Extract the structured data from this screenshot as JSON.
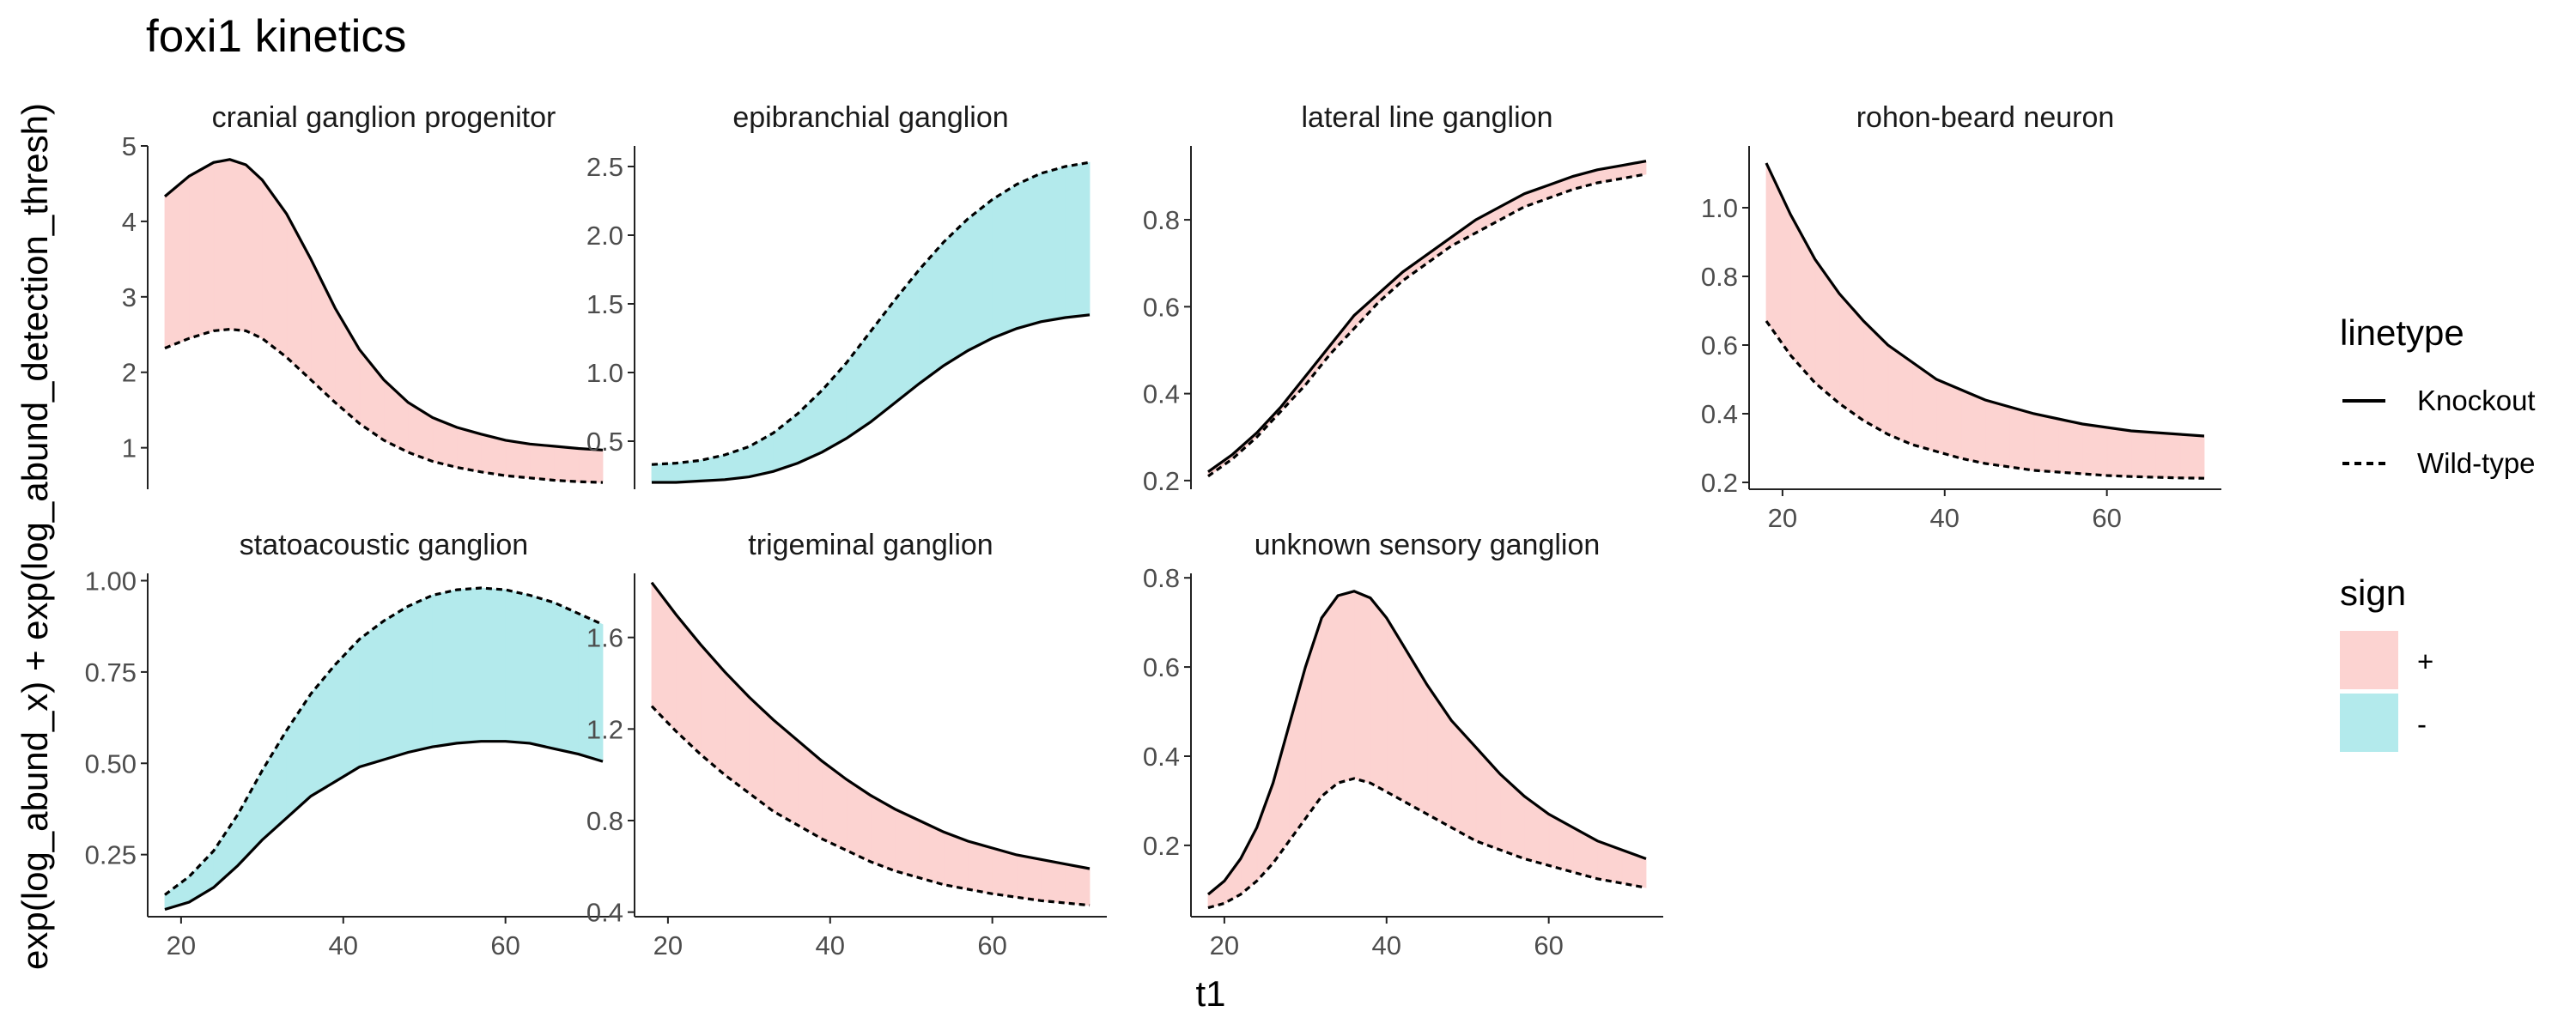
{
  "title": "foxi1 kinetics",
  "xlabel": "t1",
  "ylabel": "exp(log_abund_x) + exp(log_abund_detection_thresh)",
  "legend": {
    "linetype_title": "linetype",
    "linetype_items": [
      {
        "label": "Knockout",
        "style": "solid"
      },
      {
        "label": "Wild-type",
        "style": "dashed"
      }
    ],
    "sign_title": "sign",
    "sign_items": [
      {
        "label": "+",
        "color": "#fcd3d1"
      },
      {
        "label": "-",
        "color": "#b3eaec"
      }
    ]
  },
  "colors": {
    "positive": "#fcd3d1",
    "negative": "#b3eaec",
    "line": "#000000"
  },
  "chart_data": {
    "type": "area",
    "description_free": true,
    "x_range": [
      18,
      72
    ],
    "x_ticks": [
      20,
      40,
      60
    ],
    "panels": [
      {
        "title": "cranial ganglion progenitor",
        "ylim": [
          0.45,
          5.0
        ],
        "yticks": [
          1,
          2,
          3,
          4,
          5
        ],
        "ytick_labels": [
          "1",
          "2",
          "3",
          "4",
          "5"
        ],
        "x": [
          18,
          21,
          24,
          26,
          28,
          30,
          33,
          36,
          39,
          42,
          45,
          48,
          51,
          54,
          57,
          60,
          63,
          66,
          69,
          72
        ],
        "knockout": [
          4.33,
          4.6,
          4.78,
          4.82,
          4.75,
          4.55,
          4.1,
          3.5,
          2.85,
          2.3,
          1.9,
          1.6,
          1.4,
          1.27,
          1.18,
          1.1,
          1.05,
          1.02,
          0.99,
          0.97
        ],
        "wildtype": [
          2.32,
          2.45,
          2.55,
          2.57,
          2.55,
          2.45,
          2.2,
          1.9,
          1.6,
          1.32,
          1.1,
          0.94,
          0.82,
          0.74,
          0.68,
          0.63,
          0.6,
          0.57,
          0.55,
          0.54
        ]
      },
      {
        "title": "epibranchial ganglion",
        "ylim": [
          0.15,
          2.65
        ],
        "yticks": [
          0.5,
          1.0,
          1.5,
          2.0,
          2.5
        ],
        "ytick_labels": [
          "0.5",
          "1.0",
          "1.5",
          "2.0",
          "2.5"
        ],
        "x": [
          18,
          21,
          24,
          27,
          30,
          33,
          36,
          39,
          42,
          45,
          48,
          51,
          54,
          57,
          60,
          63,
          66,
          69,
          72
        ],
        "knockout": [
          0.2,
          0.2,
          0.21,
          0.22,
          0.24,
          0.28,
          0.34,
          0.42,
          0.52,
          0.64,
          0.78,
          0.92,
          1.05,
          1.16,
          1.25,
          1.32,
          1.37,
          1.4,
          1.42
        ],
        "wildtype": [
          0.33,
          0.34,
          0.36,
          0.4,
          0.46,
          0.56,
          0.7,
          0.87,
          1.07,
          1.3,
          1.53,
          1.75,
          1.95,
          2.12,
          2.26,
          2.37,
          2.45,
          2.5,
          2.53
        ]
      },
      {
        "title": "lateral line ganglion",
        "ylim": [
          0.18,
          0.97
        ],
        "yticks": [
          0.2,
          0.4,
          0.6,
          0.8
        ],
        "ytick_labels": [
          "0.2",
          "0.4",
          "0.6",
          "0.8"
        ],
        "x": [
          18,
          21,
          24,
          27,
          30,
          33,
          36,
          39,
          42,
          45,
          48,
          51,
          54,
          57,
          60,
          63,
          66,
          69,
          72
        ],
        "knockout": [
          0.22,
          0.26,
          0.31,
          0.37,
          0.44,
          0.51,
          0.58,
          0.63,
          0.68,
          0.72,
          0.76,
          0.8,
          0.83,
          0.86,
          0.88,
          0.9,
          0.915,
          0.925,
          0.935
        ],
        "wildtype": [
          0.21,
          0.25,
          0.3,
          0.36,
          0.42,
          0.49,
          0.55,
          0.61,
          0.66,
          0.7,
          0.74,
          0.77,
          0.8,
          0.83,
          0.85,
          0.87,
          0.885,
          0.895,
          0.905
        ]
      },
      {
        "title": "rohon-beard neuron",
        "ylim": [
          0.18,
          1.18
        ],
        "yticks": [
          0.2,
          0.4,
          0.6,
          0.8,
          1.0
        ],
        "ytick_labels": [
          "0.2",
          "0.4",
          "0.6",
          "0.8",
          "1.0"
        ],
        "x": [
          18,
          21,
          24,
          27,
          30,
          33,
          36,
          39,
          42,
          45,
          48,
          51,
          54,
          57,
          60,
          63,
          66,
          69,
          72
        ],
        "knockout": [
          1.13,
          0.98,
          0.85,
          0.75,
          0.67,
          0.6,
          0.55,
          0.5,
          0.47,
          0.44,
          0.42,
          0.4,
          0.385,
          0.37,
          0.36,
          0.35,
          0.345,
          0.34,
          0.335
        ],
        "wildtype": [
          0.67,
          0.57,
          0.49,
          0.43,
          0.38,
          0.34,
          0.31,
          0.29,
          0.27,
          0.255,
          0.245,
          0.235,
          0.23,
          0.225,
          0.22,
          0.217,
          0.215,
          0.213,
          0.212
        ]
      },
      {
        "title": "statoacoustic ganglion",
        "ylim": [
          0.08,
          1.02
        ],
        "yticks": [
          0.25,
          0.5,
          0.75,
          1.0
        ],
        "ytick_labels": [
          "0.25",
          "0.50",
          "0.75",
          "1.00"
        ],
        "x": [
          18,
          21,
          24,
          27,
          30,
          33,
          36,
          39,
          42,
          45,
          48,
          51,
          54,
          57,
          60,
          63,
          66,
          69,
          72
        ],
        "knockout": [
          0.1,
          0.12,
          0.16,
          0.22,
          0.29,
          0.35,
          0.41,
          0.45,
          0.49,
          0.51,
          0.53,
          0.545,
          0.555,
          0.56,
          0.56,
          0.555,
          0.54,
          0.525,
          0.505
        ],
        "wildtype": [
          0.14,
          0.19,
          0.26,
          0.36,
          0.48,
          0.59,
          0.69,
          0.77,
          0.84,
          0.89,
          0.93,
          0.96,
          0.975,
          0.98,
          0.975,
          0.96,
          0.94,
          0.91,
          0.88
        ]
      },
      {
        "title": "trigeminal ganglion",
        "ylim": [
          0.38,
          1.88
        ],
        "yticks": [
          0.4,
          0.8,
          1.2,
          1.6
        ],
        "ytick_labels": [
          "0.4",
          "0.8",
          "1.2",
          "1.6"
        ],
        "x": [
          18,
          21,
          24,
          27,
          30,
          33,
          36,
          39,
          42,
          45,
          48,
          51,
          54,
          57,
          60,
          63,
          66,
          69,
          72
        ],
        "knockout": [
          1.84,
          1.7,
          1.57,
          1.45,
          1.34,
          1.24,
          1.15,
          1.06,
          0.98,
          0.91,
          0.85,
          0.8,
          0.75,
          0.71,
          0.68,
          0.65,
          0.63,
          0.61,
          0.59
        ],
        "wildtype": [
          1.3,
          1.19,
          1.09,
          1.0,
          0.92,
          0.84,
          0.78,
          0.72,
          0.67,
          0.62,
          0.58,
          0.55,
          0.52,
          0.5,
          0.48,
          0.465,
          0.45,
          0.44,
          0.43
        ]
      },
      {
        "title": "unknown sensory ganglion",
        "ylim": [
          0.04,
          0.81
        ],
        "yticks": [
          0.2,
          0.4,
          0.6,
          0.8
        ],
        "ytick_labels": [
          "0.2",
          "0.4",
          "0.6",
          "0.8"
        ],
        "x": [
          18,
          20,
          22,
          24,
          26,
          28,
          30,
          32,
          34,
          36,
          38,
          40,
          42,
          45,
          48,
          51,
          54,
          57,
          60,
          63,
          66,
          69,
          72
        ],
        "knockout": [
          0.09,
          0.12,
          0.17,
          0.24,
          0.34,
          0.47,
          0.6,
          0.71,
          0.76,
          0.77,
          0.755,
          0.71,
          0.65,
          0.56,
          0.48,
          0.42,
          0.36,
          0.31,
          0.27,
          0.24,
          0.21,
          0.19,
          0.17
        ],
        "wildtype": [
          0.06,
          0.07,
          0.09,
          0.12,
          0.16,
          0.21,
          0.26,
          0.31,
          0.34,
          0.35,
          0.34,
          0.32,
          0.3,
          0.27,
          0.24,
          0.21,
          0.19,
          0.17,
          0.155,
          0.14,
          0.125,
          0.115,
          0.105
        ]
      }
    ]
  }
}
